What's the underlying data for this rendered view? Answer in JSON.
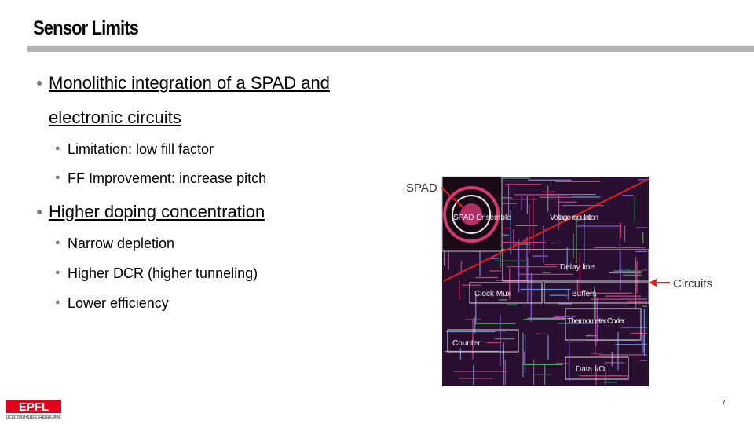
{
  "header": {
    "title": "Sensor Limits"
  },
  "bullets": [
    {
      "text": "Monolithic integration of a SPAD and electronic circuits",
      "sub": [
        "Limitation: low fill factor",
        "FF Improvement: increase pitch"
      ]
    },
    {
      "text": "Higher doping concentration",
      "sub": [
        "Narrow depletion",
        "Higher DCR (higher tunneling)",
        "Lower efficiency"
      ]
    }
  ],
  "figure": {
    "callouts": [
      "SPAD",
      "Circuits"
    ],
    "blocks": [
      "SPAD Ensemble",
      "Voltage regulation",
      "Delay line",
      "Clock Mux",
      "Buffers",
      "Thermometer Coder",
      "Counter",
      "Data I/O"
    ]
  },
  "footer": {
    "logo": "EPFL",
    "logo_caption": "ECOLE POLYTECHNIQUE FEDERALE DE LAUSANNE",
    "page": "7"
  }
}
